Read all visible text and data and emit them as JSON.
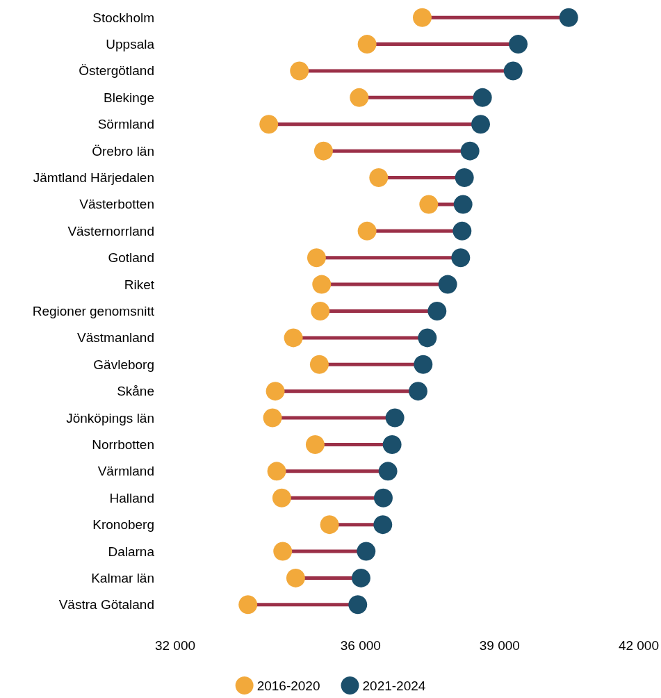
{
  "chart_data": {
    "type": "scatter",
    "orientation": "horizontal",
    "marker": "circle",
    "grid": false,
    "legend": "bottom",
    "categories": [
      "Stockholm",
      "Uppsala",
      "Östergötland",
      "Blekinge",
      "Sörmland",
      "Örebro län",
      "Jämtland Härjedalen",
      "Västerbotten",
      "Västernorrland",
      "Gotland",
      "Riket",
      "Regioner genomsnitt",
      "Västmanland",
      "Gävleborg",
      "Skåne",
      "Jönköpings län",
      "Norrbotten",
      "Värmland",
      "Halland",
      "Kronoberg",
      "Dalarna",
      "Kalmar län",
      "Västra Götaland"
    ],
    "xlim": [
      32000,
      42000
    ],
    "xticks": [
      {
        "value": 32000,
        "label": "32 000"
      },
      {
        "value": 36000,
        "label": "36 000"
      },
      {
        "value": 39000,
        "label": "39 000"
      },
      {
        "value": 42000,
        "label": "42 000"
      }
    ],
    "series": [
      {
        "name": "2016-2020",
        "color": "#f2a93b",
        "values": [
          37330,
          36140,
          34680,
          35970,
          34020,
          35200,
          36390,
          37470,
          36140,
          35050,
          35160,
          35130,
          34550,
          35110,
          34160,
          34100,
          35020,
          34190,
          34300,
          35330,
          34320,
          34600,
          33570
        ]
      },
      {
        "name": "2021-2024",
        "color": "#1b4f6b",
        "values": [
          40490,
          39400,
          39290,
          38630,
          38590,
          38360,
          38240,
          38210,
          38190,
          38160,
          37880,
          37650,
          37440,
          37350,
          37240,
          36740,
          36680,
          36590,
          36490,
          36480,
          36120,
          36010,
          35940
        ]
      }
    ]
  }
}
